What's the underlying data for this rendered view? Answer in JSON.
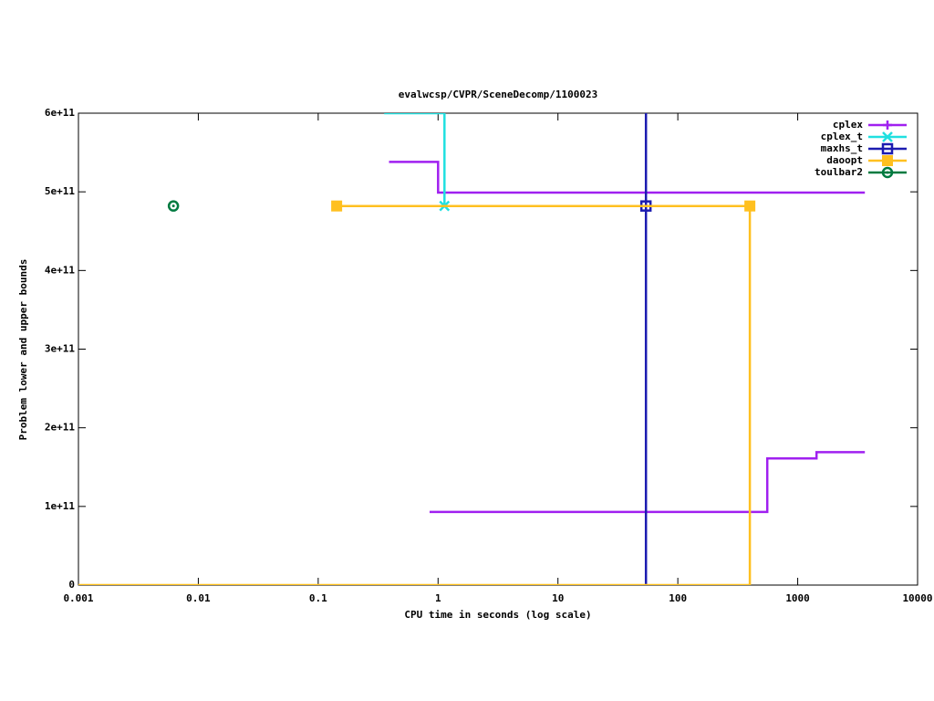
{
  "chart_data": {
    "type": "line",
    "title": "evalwcsp/CVPR/SceneDecomp/1100023",
    "x_label": "CPU time in seconds (log scale)",
    "y_label": "Problem lower and upper bounds",
    "x_log": true,
    "xlim": [
      0.001,
      10000
    ],
    "xticks": [
      0.001,
      0.01,
      0.1,
      1,
      10,
      100,
      1000,
      10000
    ],
    "ylim": [
      0,
      600000000000
    ],
    "yticks": [
      0,
      {
        "value": 100000000000,
        "label": "1e+11"
      },
      {
        "value": 200000000000,
        "label": "2e+11"
      },
      {
        "value": 300000000000,
        "label": "3e+11"
      },
      {
        "value": 400000000000,
        "label": "4e+11"
      },
      {
        "value": 500000000000,
        "label": "5e+11"
      },
      {
        "value": 600000000000,
        "label": "6e+11"
      }
    ],
    "legend": "upper right",
    "series": [
      {
        "name": "cplex",
        "color": "#a020f0",
        "marker": "plus",
        "x": [
          0.39,
          1.0,
          1.0,
          3630,
          null,
          0.85,
          557,
          557,
          1436,
          1436,
          3630
        ],
        "values": [
          538000000000,
          538000000000,
          499000000000,
          499000000000,
          null,
          93000000000,
          93000000000,
          161000000000,
          161000000000,
          169000000000,
          169000000000
        ],
        "points": {
          "x": [],
          "values": []
        }
      },
      {
        "name": "cplex_t",
        "color": "#20e0e0",
        "marker": "cross",
        "x": [
          0.355,
          1.13,
          1.13
        ],
        "values": [
          600000000000,
          600000000000,
          482000000000
        ],
        "points": {
          "x": [
            1.13
          ],
          "values": [
            482000000000
          ]
        }
      },
      {
        "name": "maxhs_t",
        "color": "#1c1cb0",
        "marker": "square-open",
        "x": [
          54.2,
          54.2
        ],
        "values": [
          0,
          600000000000
        ],
        "points": {
          "x": [
            54.2
          ],
          "values": [
            482000000000
          ]
        }
      },
      {
        "name": "daoopt",
        "color": "#ffc020",
        "marker": "square-filled",
        "x": [
          0.1426,
          399,
          399,
          null,
          0.001,
          399
        ],
        "values": [
          482000000000,
          482000000000,
          0,
          null,
          0,
          0
        ],
        "points": {
          "x": [
            0.1426,
            399
          ],
          "values": [
            482000000000,
            482000000000
          ]
        }
      },
      {
        "name": "toulbar2",
        "color": "#007a40",
        "marker": "circle-dot",
        "x": [],
        "values": [],
        "points": {
          "x": [
            0.0062
          ],
          "values": [
            482000000000
          ]
        }
      }
    ]
  }
}
